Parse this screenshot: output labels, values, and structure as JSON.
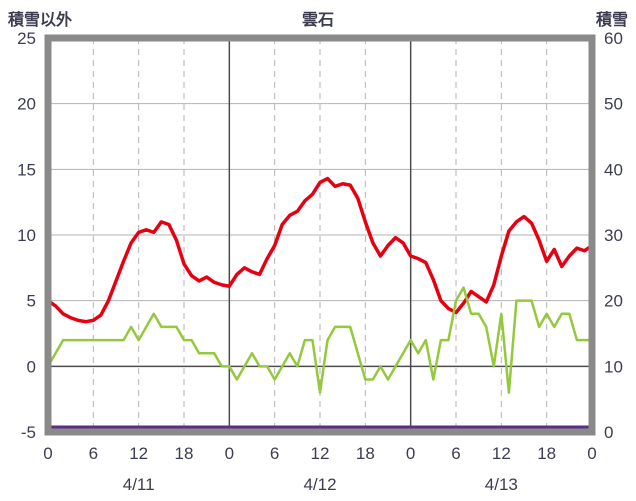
{
  "header": {
    "left_axis_title": "積雪以外",
    "chart_title": "雲石",
    "right_axis_title": "積雪"
  },
  "colors": {
    "red": "#e60012",
    "green": "#94c83d",
    "purple": "#5a2d87",
    "border": "#8a8a8a",
    "grid": "#b3b3b3",
    "grid_dark": "#4d4d4d",
    "text": "#3d3d52",
    "background": "#ffffff"
  },
  "chart_data": {
    "type": "line",
    "title": "雲石",
    "left_axis": {
      "label": "積雪以外",
      "min": -5,
      "max": 25,
      "ticks": [
        25,
        20,
        15,
        10,
        5,
        0,
        -5
      ]
    },
    "right_axis": {
      "label": "積雪",
      "min": 0,
      "max": 60,
      "ticks": [
        60,
        50,
        40,
        30,
        20,
        10,
        0
      ]
    },
    "x_axis": {
      "hours_total": 72,
      "tick_step_hours": 6,
      "hour_ticks": [
        "0",
        "6",
        "12",
        "18",
        "0",
        "6",
        "12",
        "18",
        "0",
        "6",
        "12",
        "18",
        "0"
      ],
      "day_labels": [
        "4/11",
        "4/12",
        "4/13"
      ],
      "grid": "dashed-6h-solid-24h"
    },
    "legend": "none",
    "series": [
      {
        "name": "red-line",
        "axis": "left",
        "color": "#e60012",
        "width": 3.5,
        "values": [
          5.0,
          4.6,
          4.0,
          3.7,
          3.5,
          3.4,
          3.5,
          3.9,
          5.0,
          6.5,
          8.0,
          9.4,
          10.2,
          10.4,
          10.2,
          11.0,
          10.8,
          9.6,
          7.8,
          6.9,
          6.5,
          6.8,
          6.4,
          6.2,
          6.1,
          7.0,
          7.5,
          7.2,
          7.0,
          8.2,
          9.2,
          10.8,
          11.5,
          11.8,
          12.6,
          13.1,
          14.0,
          14.3,
          13.7,
          13.9,
          13.8,
          12.8,
          11.0,
          9.4,
          8.4,
          9.2,
          9.8,
          9.4,
          8.4,
          8.2,
          7.9,
          6.6,
          5.0,
          4.4,
          4.1,
          4.8,
          5.7,
          5.3,
          4.9,
          6.2,
          8.4,
          10.3,
          11.0,
          11.4,
          10.9,
          9.6,
          8.0,
          8.9,
          7.6,
          8.4,
          9.0,
          8.8,
          9.2
        ]
      },
      {
        "name": "green-line",
        "axis": "left",
        "color": "#94c83d",
        "width": 2.5,
        "values": [
          0,
          1,
          2,
          2,
          2,
          2,
          2,
          2,
          2,
          2,
          2,
          3,
          2,
          3,
          4,
          3,
          3,
          3,
          2,
          2,
          1,
          1,
          1,
          0,
          0,
          -1,
          0,
          1,
          0,
          0,
          -1,
          0,
          1,
          0,
          2,
          2,
          -2,
          2,
          3,
          3,
          3,
          1,
          -1,
          -1,
          0,
          -1,
          0,
          1,
          2,
          1,
          2,
          -1,
          2,
          2,
          5,
          6,
          4,
          4,
          3,
          0,
          4,
          -2,
          5,
          5,
          5,
          3,
          4,
          3,
          4,
          4,
          2,
          2,
          2
        ]
      },
      {
        "name": "purple-line",
        "axis": "right",
        "color": "#5a2d87",
        "width": 3,
        "values": [
          0,
          0,
          0,
          0,
          0,
          0,
          0,
          0,
          0,
          0,
          0,
          0,
          0,
          0,
          0,
          0,
          0,
          0,
          0,
          0,
          0,
          0,
          0,
          0,
          0,
          0,
          0,
          0,
          0,
          0,
          0,
          0,
          0,
          0,
          0,
          0,
          0,
          0,
          0,
          0,
          0,
          0,
          0,
          0,
          0,
          0,
          0,
          0,
          0,
          0,
          0,
          0,
          0,
          0,
          0,
          0,
          0,
          0,
          0,
          0,
          0,
          0,
          0,
          0,
          0,
          0,
          0,
          0,
          0,
          0,
          0,
          0,
          0
        ]
      }
    ]
  }
}
